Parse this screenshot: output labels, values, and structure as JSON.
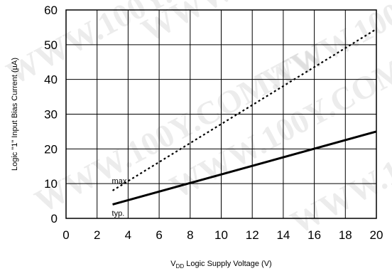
{
  "chart_data": {
    "type": "line",
    "xlabel": "V_DD Logic Supply Voltage (V)",
    "xlabel_main": "V",
    "xlabel_sub": "DD",
    "xlabel_rest": " Logic Supply Voltage (V)",
    "ylabel": "Logic \"1\" Input Bias Current (µA)",
    "xlim": [
      0,
      20
    ],
    "ylim": [
      0,
      60
    ],
    "x_ticks": [
      0,
      2,
      4,
      6,
      8,
      10,
      12,
      14,
      16,
      18,
      20
    ],
    "y_ticks": [
      0,
      10,
      20,
      30,
      40,
      50,
      60
    ],
    "grid": true,
    "series": [
      {
        "name": "max",
        "style": "dotted",
        "x": [
          3,
          20
        ],
        "y": [
          8,
          54.5
        ]
      },
      {
        "name": "typ.",
        "style": "solid",
        "x": [
          3,
          20
        ],
        "y": [
          4,
          25
        ]
      }
    ]
  },
  "watermark": "WWW.100Y.COM.TW",
  "colors": {
    "line": "#000000",
    "grid": "#000000",
    "background": "#ffffff",
    "watermark": "#c9c9c9"
  }
}
